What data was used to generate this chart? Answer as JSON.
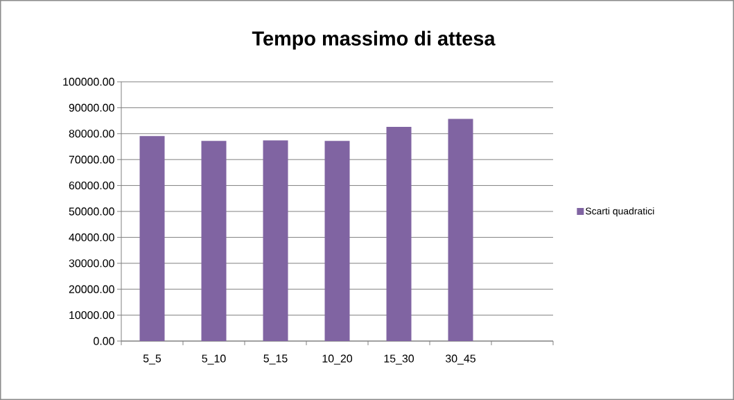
{
  "chart_data": {
    "type": "bar",
    "title": "Tempo massimo di attesa",
    "categories": [
      "5_5",
      "5_10",
      "5_15",
      "10_20",
      "15_30",
      "30_45",
      null
    ],
    "series": [
      {
        "name": "Scarti quadratici",
        "color": "#8064a2",
        "values": [
          79100,
          77200,
          77400,
          77200,
          82600,
          85700,
          null
        ]
      }
    ],
    "ylim": [
      0,
      100000
    ],
    "yticks": [
      {
        "value": 0,
        "label": "0.00"
      },
      {
        "value": 10000,
        "label": "10000.00"
      },
      {
        "value": 20000,
        "label": "20000.00"
      },
      {
        "value": 30000,
        "label": "30000.00"
      },
      {
        "value": 40000,
        "label": "40000.00"
      },
      {
        "value": 50000,
        "label": "50000.00"
      },
      {
        "value": 60000,
        "label": "60000.00"
      },
      {
        "value": 70000,
        "label": "70000.00"
      },
      {
        "value": 80000,
        "label": "80000.00"
      },
      {
        "value": 90000,
        "label": "90000.00"
      },
      {
        "value": 100000,
        "label": "100000.00"
      }
    ],
    "grid": "y",
    "legend": "right"
  }
}
